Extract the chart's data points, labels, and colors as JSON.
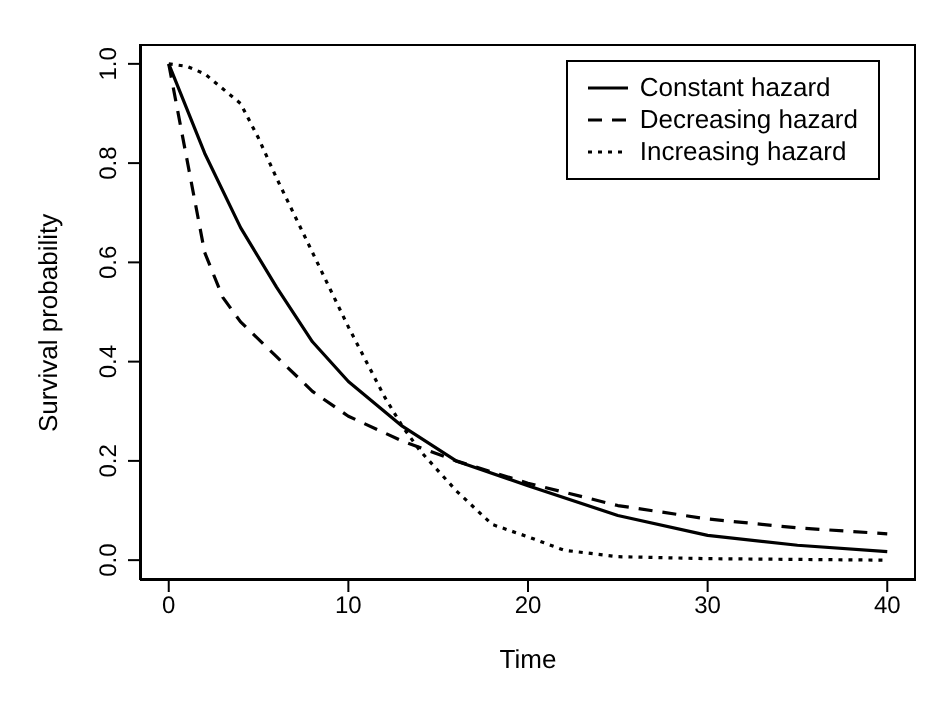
{
  "chart_data": {
    "type": "line",
    "xlabel": "Time",
    "ylabel": "Survival probability",
    "xlim": [
      -1.6,
      41.6
    ],
    "ylim": [
      -0.04,
      1.04
    ],
    "xticks": [
      0,
      10,
      20,
      30,
      40
    ],
    "yticks": [
      {
        "value": 0,
        "label": "0.0"
      },
      {
        "value": 0.2,
        "label": "0.2"
      },
      {
        "value": 0.4,
        "label": "0.4"
      },
      {
        "value": 0.6,
        "label": "0.6"
      },
      {
        "value": 0.8,
        "label": "0.8"
      },
      {
        "value": 1,
        "label": "1.0"
      }
    ],
    "grid": false,
    "legend": "top right",
    "marker": "none",
    "series": [
      {
        "name": "Constant hazard",
        "color": "#000000",
        "line_style": "solid",
        "x": [
          0,
          2,
          4,
          6,
          8,
          10,
          13,
          16,
          20,
          25,
          30,
          35,
          40
        ],
        "values": [
          1,
          0.82,
          0.67,
          0.55,
          0.44,
          0.36,
          0.27,
          0.2,
          0.15,
          0.09,
          0.05,
          0.03,
          0.017
        ]
      },
      {
        "name": "Decreasing hazard",
        "color": "#000000",
        "line_style": "dashed",
        "x": [
          0,
          1,
          2,
          3,
          4,
          6,
          8,
          10,
          13,
          16,
          20,
          25,
          30,
          35,
          40
        ],
        "values": [
          1,
          0.81,
          0.62,
          0.53,
          0.48,
          0.41,
          0.34,
          0.29,
          0.24,
          0.2,
          0.155,
          0.11,
          0.083,
          0.065,
          0.053
        ]
      },
      {
        "name": "Increasing hazard",
        "color": "#000000",
        "line_style": "dotted",
        "x": [
          0,
          1,
          2,
          4,
          5,
          6,
          8,
          10,
          12,
          13,
          14,
          16,
          18,
          20,
          22,
          25,
          30,
          40
        ],
        "values": [
          1,
          0.995,
          0.98,
          0.92,
          0.85,
          0.77,
          0.62,
          0.47,
          0.33,
          0.27,
          0.22,
          0.14,
          0.072,
          0.047,
          0.02,
          0.007,
          0.003,
          0
        ]
      }
    ]
  }
}
